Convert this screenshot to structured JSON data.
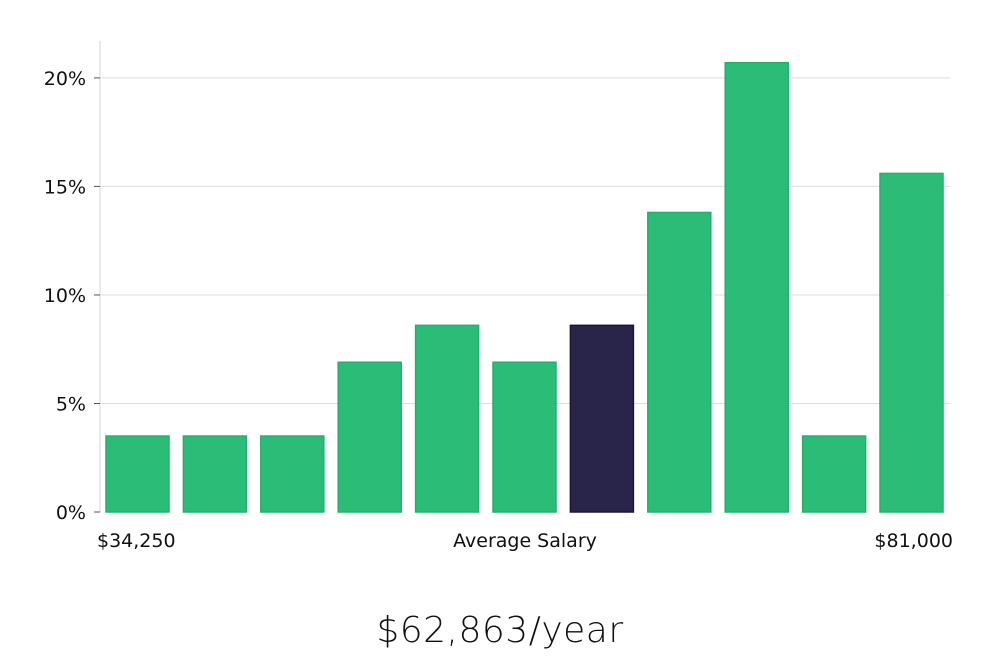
{
  "chart_data": {
    "type": "bar",
    "title": "",
    "xlabel": "Average Salary",
    "ylabel": "",
    "x_min_label": "$34,250",
    "x_max_label": "$81,000",
    "ylim": [
      0,
      21.7
    ],
    "yticks": [
      0,
      5,
      10,
      15,
      20
    ],
    "ytick_labels": [
      "0%",
      "5%",
      "10%",
      "15%",
      "20%"
    ],
    "grid": true,
    "legend": "none",
    "values": [
      3.5,
      3.5,
      3.5,
      6.9,
      8.6,
      6.9,
      8.6,
      13.8,
      20.7,
      3.5,
      15.6
    ],
    "highlight_index": 6,
    "colors": {
      "bar": "#2bbd77",
      "bar_edge": "#22b06b",
      "highlight": "#29244a",
      "highlight_edge": "#1a1638",
      "grid": "#dddddd",
      "axis": "#d6d6d6"
    }
  },
  "salary": {
    "value": "$62,863/year"
  }
}
